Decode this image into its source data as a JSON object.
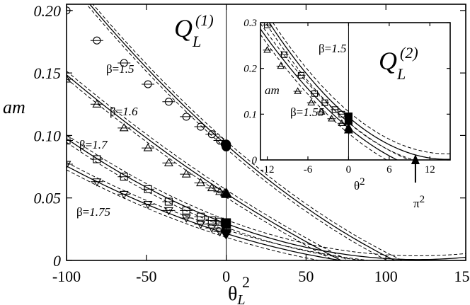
{
  "chart_data": [
    {
      "type": "scatter",
      "panel": "main",
      "title": "Q_L^(1)",
      "title_main": "Q",
      "title_sub": "L",
      "title_sup": "(1)",
      "ylabel": "am",
      "xlabel_main": "θ",
      "xlabel_sub": "L",
      "xlabel_sup": "2",
      "xlim": [
        -100,
        150
      ],
      "ylim": [
        0,
        0.205
      ],
      "xticks": [
        -100,
        -50,
        0,
        50,
        100,
        150
      ],
      "xtick_labels": [
        "-100",
        "-50",
        "0",
        "50",
        "100",
        "150"
      ],
      "yticks": [
        0,
        0.05,
        0.1,
        0.15,
        0.2
      ],
      "ytick_labels": [
        "0",
        "0.05",
        "0.10",
        "0.15",
        "0.20"
      ],
      "grid": false,
      "vline_x": 0,
      "series": [
        {
          "name": "β=1.5",
          "beta": "β=",
          "beta_val": "1.5",
          "marker": "circle",
          "x": [
            -100,
            -81,
            -64,
            -49,
            -36,
            -25,
            -16,
            -9,
            -4,
            -1
          ],
          "y": [
            0.2,
            0.176,
            0.158,
            0.141,
            0.127,
            0.115,
            0.107,
            0.101,
            0.096,
            0.093
          ],
          "x_zero": [
            0,
            0
          ],
          "y_zero": [
            0.091,
            0.093
          ],
          "fit": {
            "a": 0.0925,
            "b": -0.00112,
            "c": 2.3e-06
          },
          "band": 0.003
        },
        {
          "name": "β=1.6",
          "beta": "β=",
          "beta_val": "1.6",
          "marker": "triangle-up",
          "x": [
            -100,
            -81,
            -64,
            -49,
            -36,
            -25,
            -16,
            -9,
            -4,
            -1
          ],
          "y": [
            0.145,
            0.125,
            0.106,
            0.09,
            0.078,
            0.069,
            0.062,
            0.058,
            0.055,
            0.054
          ],
          "x_zero": [
            0,
            0
          ],
          "y_zero": [
            0.053,
            0.054
          ],
          "fit": {
            "a": 0.0535,
            "b": -0.00083,
            "c": 1.2e-06
          },
          "band": 0.003
        },
        {
          "name": "β=1.7",
          "beta": "β=",
          "beta_val": "1.7",
          "marker": "square",
          "x": [
            -100,
            -81,
            -64,
            -49,
            -36,
            -25,
            -16,
            -9,
            -4,
            -1
          ],
          "y": [
            0.096,
            0.081,
            0.067,
            0.057,
            0.047,
            0.04,
            0.035,
            0.032,
            0.031,
            0.03
          ],
          "x_zero": [
            0,
            0
          ],
          "y_zero": [
            0.03,
            0.029
          ],
          "fit": {
            "a": 0.0295,
            "b": -0.00048,
            "c": 2e-06
          },
          "band": 0.003
        },
        {
          "name": "β=1.75",
          "beta": "β=",
          "beta_val": "1.75",
          "marker": "triangle-down",
          "x": [
            -100,
            -81,
            -64,
            -49,
            -36,
            -25,
            -16,
            -9,
            -4,
            -1
          ],
          "y": [
            0.077,
            0.063,
            0.053,
            0.045,
            0.04,
            0.034,
            0.029,
            0.026,
            0.023,
            0.022
          ],
          "x_zero": [
            0,
            0
          ],
          "y_zero": [
            0.022,
            0.021
          ],
          "fit": {
            "a": 0.0215,
            "b": -0.0004,
            "c": 1.4e-06
          },
          "band": 0.003
        }
      ],
      "annotations": [
        "β=1.5",
        "β=1.6",
        "β=1.7",
        "β=1.75"
      ]
    },
    {
      "type": "scatter",
      "panel": "inset",
      "title": "Q_L^(2)",
      "title_main": "Q",
      "title_sub": "L",
      "title_sup": "(2)",
      "ylabel": "am",
      "xlabel_main": "θ",
      "xlabel_sup": "2",
      "xlim": [
        -13,
        15
      ],
      "ylim": [
        0,
        0.3
      ],
      "xticks": [
        -12,
        -6,
        0,
        6,
        12
      ],
      "xtick_labels": [
        "-12",
        "-6",
        "0",
        "6",
        "12"
      ],
      "yticks": [
        0,
        0.1,
        0.2,
        0.3
      ],
      "ytick_labels": [
        "0",
        "0.1",
        "0.2",
        "0.3"
      ],
      "grid": false,
      "vline_x": 0,
      "arrow_x": 9.87,
      "arrow_label_main": "π",
      "arrow_label_sup": "2",
      "series": [
        {
          "name": "β=1.5",
          "beta": "β=",
          "beta_val": "1.5",
          "marker": "square",
          "x": [
            -12,
            -9.5,
            -7,
            -5,
            -3.5,
            -2,
            -1
          ],
          "y": [
            0.295,
            0.23,
            0.185,
            0.145,
            0.125,
            0.11,
            0.1
          ],
          "x_zero": [
            0,
            0
          ],
          "y_zero": [
            0.095,
            0.085
          ],
          "fit": {
            "a": 0.0935,
            "b": -0.0126,
            "c": 0.00043
          },
          "band": 0.012
        },
        {
          "name": "β=1.55",
          "beta": "β=",
          "beta_val": "1.55",
          "marker": "triangle-up",
          "x": [
            -12,
            -10,
            -7.5,
            -5.5,
            -4,
            -2.5,
            -1
          ],
          "y": [
            0.24,
            0.205,
            0.15,
            0.125,
            0.105,
            0.09,
            0.08
          ],
          "x_zero": [
            0,
            0
          ],
          "y_zero": [
            0.07,
            0.065
          ],
          "fit": {
            "a": 0.07,
            "b": -0.0122,
            "c": 0.00034
          },
          "band": 0.012
        }
      ],
      "annotations": [
        "β=1.5",
        "β=1.55"
      ]
    }
  ]
}
